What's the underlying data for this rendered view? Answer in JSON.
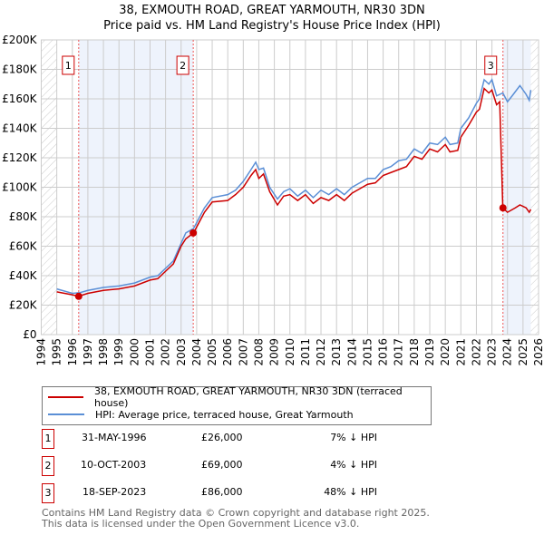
{
  "chart_data": {
    "type": "line",
    "title": "38, EXMOUTH ROAD, GREAT YARMOUTH, NR30 3DN",
    "subtitle": "Price paid vs. HM Land Registry's House Price Index (HPI)",
    "xlim": [
      1994,
      2026
    ],
    "ylim": [
      0,
      200000
    ],
    "x_ticks": [
      "1994",
      "1995",
      "1996",
      "1997",
      "1998",
      "1999",
      "2000",
      "2001",
      "2002",
      "2003",
      "2004",
      "2005",
      "2006",
      "2007",
      "2008",
      "2009",
      "2010",
      "2011",
      "2012",
      "2013",
      "2014",
      "2015",
      "2016",
      "2017",
      "2018",
      "2019",
      "2020",
      "2021",
      "2022",
      "2023",
      "2024",
      "2025",
      "2026"
    ],
    "y_ticks": [
      "£0",
      "£20K",
      "£40K",
      "£60K",
      "£80K",
      "£100K",
      "£120K",
      "£140K",
      "£160K",
      "£180K",
      "£200K"
    ],
    "grid": true,
    "series": [
      {
        "name": "38, EXMOUTH ROAD, GREAT YARMOUTH, NR30 3DN (terraced house)",
        "color": "#cc0000",
        "x": [
          1995,
          1996,
          1996.4,
          1997,
          1998,
          1999,
          2000,
          2001,
          2001.5,
          2002,
          2002.5,
          2003,
          2003.3,
          2003.8,
          2004,
          2004.5,
          2005,
          2006,
          2006.5,
          2007,
          2007.5,
          2007.8,
          2008,
          2008.3,
          2008.7,
          2009.2,
          2009.6,
          2010,
          2010.5,
          2011,
          2011.5,
          2012,
          2012.5,
          2013,
          2013.5,
          2014,
          2014.5,
          2015,
          2015.5,
          2016,
          2016.5,
          2017,
          2017.5,
          2018,
          2018.5,
          2019,
          2019.5,
          2020,
          2020.3,
          2020.8,
          2021,
          2021.5,
          2022,
          2022.2,
          2022.5,
          2022.8,
          2023,
          2023.3,
          2023.5,
          2023.7,
          2024,
          2024.5,
          2024.8,
          2025.2,
          2025.4,
          2025.5
        ],
        "values": [
          29,
          27,
          26,
          28,
          30,
          31,
          33,
          37,
          38,
          43,
          48,
          60,
          65,
          69,
          73,
          83,
          90,
          91,
          95,
          100,
          108,
          112,
          106,
          109,
          97,
          88,
          94,
          95,
          91,
          95,
          89,
          93,
          91,
          95,
          91,
          96,
          99,
          102,
          103,
          108,
          110,
          112,
          114,
          121,
          119,
          126,
          124,
          129,
          124,
          125,
          134,
          142,
          151,
          153,
          167,
          164,
          166,
          156,
          158,
          86,
          83,
          86,
          88,
          86,
          83,
          85
        ]
      },
      {
        "name": "HPI: Average price, terraced house, Great Yarmouth",
        "color": "#5b8fd6",
        "x": [
          1995,
          1996,
          1996.5,
          1997,
          1998,
          1999,
          2000,
          2001,
          2001.5,
          2002,
          2002.5,
          2003,
          2003.3,
          2003.8,
          2004,
          2004.5,
          2005,
          2006,
          2006.5,
          2007,
          2007.5,
          2007.8,
          2008,
          2008.3,
          2008.7,
          2009.2,
          2009.6,
          2010,
          2010.5,
          2011,
          2011.5,
          2012,
          2012.5,
          2013,
          2013.5,
          2014,
          2014.5,
          2015,
          2015.5,
          2016,
          2016.5,
          2017,
          2017.5,
          2018,
          2018.5,
          2019,
          2019.5,
          2020,
          2020.3,
          2020.8,
          2021,
          2021.5,
          2022,
          2022.2,
          2022.5,
          2022.8,
          2023,
          2023.3,
          2023.7,
          2024,
          2024.3,
          2024.8,
          2025.2,
          2025.4,
          2025.5
        ],
        "values": [
          31,
          28,
          28.5,
          30,
          32,
          33,
          35,
          39,
          40,
          45,
          50,
          62,
          69,
          72,
          76,
          86,
          93,
          95,
          98,
          104,
          112,
          117,
          112,
          113,
          100,
          92,
          97,
          99,
          94,
          98,
          93,
          98,
          95,
          99,
          95,
          100,
          103,
          106,
          106,
          112,
          114,
          118,
          119,
          126,
          123,
          130,
          129,
          134,
          129,
          130,
          140,
          147,
          157,
          160,
          173,
          170,
          173,
          162,
          164,
          158,
          162,
          169,
          163,
          159,
          166
        ]
      }
    ],
    "value_unit": "£K",
    "sales": [
      {
        "label": "1",
        "year": 1996.41,
        "value": 26,
        "date": "31-MAY-1996",
        "price": "£26,000",
        "delta": "7% ↓ HPI"
      },
      {
        "label": "2",
        "year": 2003.78,
        "value": 69,
        "date": "10-OCT-2003",
        "price": "£69,000",
        "delta": "4% ↓ HPI"
      },
      {
        "label": "3",
        "year": 2023.71,
        "value": 86,
        "date": "18-SEP-2023",
        "price": "£86,000",
        "delta": "48% ↓ HPI"
      }
    ],
    "legend_position": "below"
  },
  "footer": {
    "line1": "Contains HM Land Registry data © Crown copyright and database right 2025.",
    "line2": "This data is licensed under the Open Government Licence v3.0."
  }
}
